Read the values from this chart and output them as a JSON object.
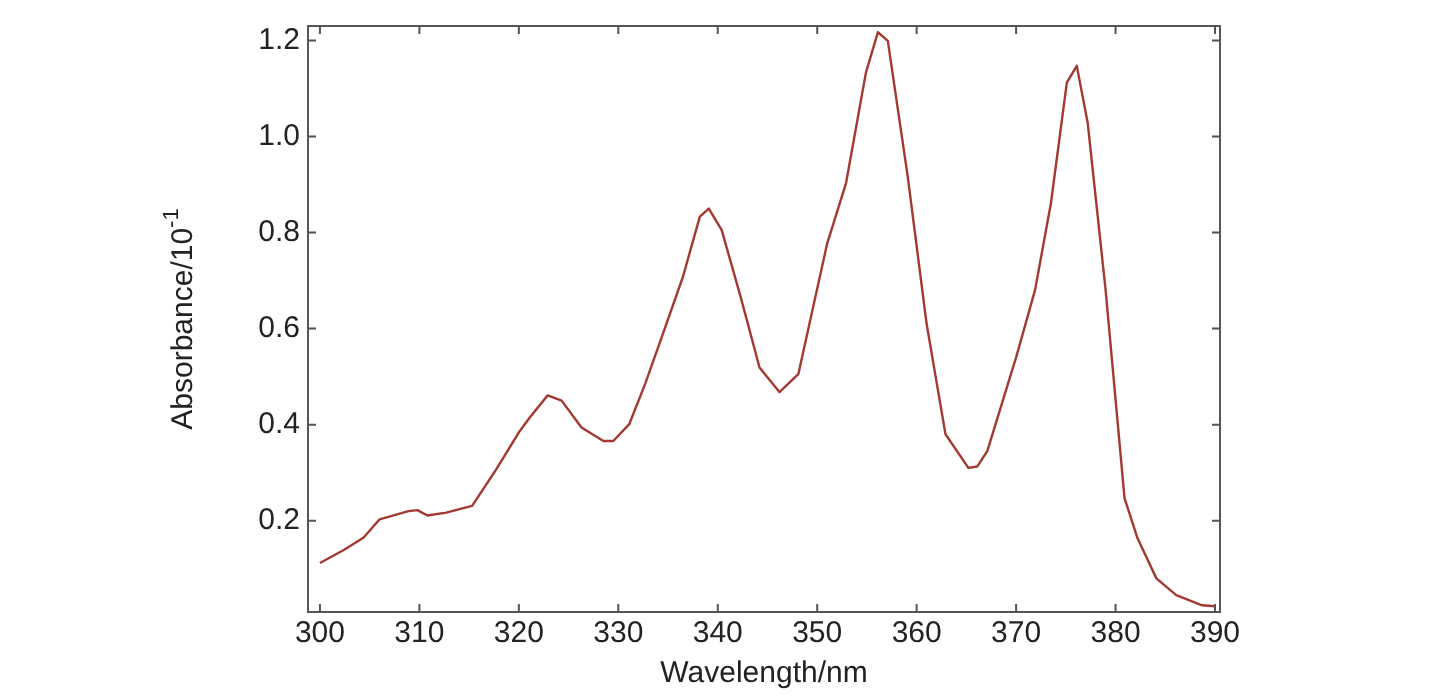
{
  "chart_data": {
    "type": "line",
    "xlabel": "Wavelength/nm",
    "ylabel": "Absorbance/10$^{-1}$",
    "xlim": [
      298.8,
      390.5
    ],
    "ylim": [
      0.01,
      1.23
    ],
    "xticks": [
      300,
      310,
      320,
      330,
      340,
      350,
      360,
      370,
      380,
      390
    ],
    "yticks": [
      {
        "value": 0.2,
        "label": "0.2"
      },
      {
        "value": 0.4,
        "label": "0.4"
      },
      {
        "value": 0.6,
        "label": "0.6"
      },
      {
        "value": 0.8,
        "label": "0.8"
      },
      {
        "value": 1.0,
        "label": "1.0"
      },
      {
        "value": 1.2,
        "label": "1.2"
      }
    ],
    "grid": false,
    "legend": false,
    "marker": "none",
    "line_style": "solid",
    "series": [
      {
        "color": "#a23a32",
        "x": [
          300,
          302.4,
          304.4,
          306,
          308.9,
          309.8,
          310.8,
          312.7,
          315.3,
          317.6,
          320.1,
          321.1,
          322.9,
          324.3,
          326.3,
          328.5,
          329.5,
          331.1,
          332.7,
          334.6,
          336.5,
          338.2,
          339.1,
          340.4,
          342.3,
          344.2,
          346.2,
          348.1,
          351.0,
          352.9,
          354.9,
          356.1,
          357.1,
          359.1,
          361.0,
          362.9,
          365.2,
          366.1,
          367.1,
          370.0,
          371.9,
          373.5,
          375.1,
          376.1,
          377.2,
          379.0,
          380.9,
          382.2,
          384.1,
          386.1,
          388.7,
          390
        ],
        "values": [
          0.112,
          0.139,
          0.165,
          0.203,
          0.22,
          0.222,
          0.211,
          0.217,
          0.231,
          0.303,
          0.387,
          0.415,
          0.461,
          0.45,
          0.394,
          0.366,
          0.366,
          0.401,
          0.485,
          0.596,
          0.708,
          0.833,
          0.85,
          0.805,
          0.666,
          0.519,
          0.468,
          0.505,
          0.777,
          0.903,
          1.133,
          1.217,
          1.199,
          0.917,
          0.61,
          0.38,
          0.31,
          0.313,
          0.345,
          0.54,
          0.68,
          0.861,
          1.112,
          1.147,
          1.028,
          0.68,
          0.247,
          0.164,
          0.08,
          0.045,
          0.024,
          0.022
        ]
      }
    ]
  }
}
